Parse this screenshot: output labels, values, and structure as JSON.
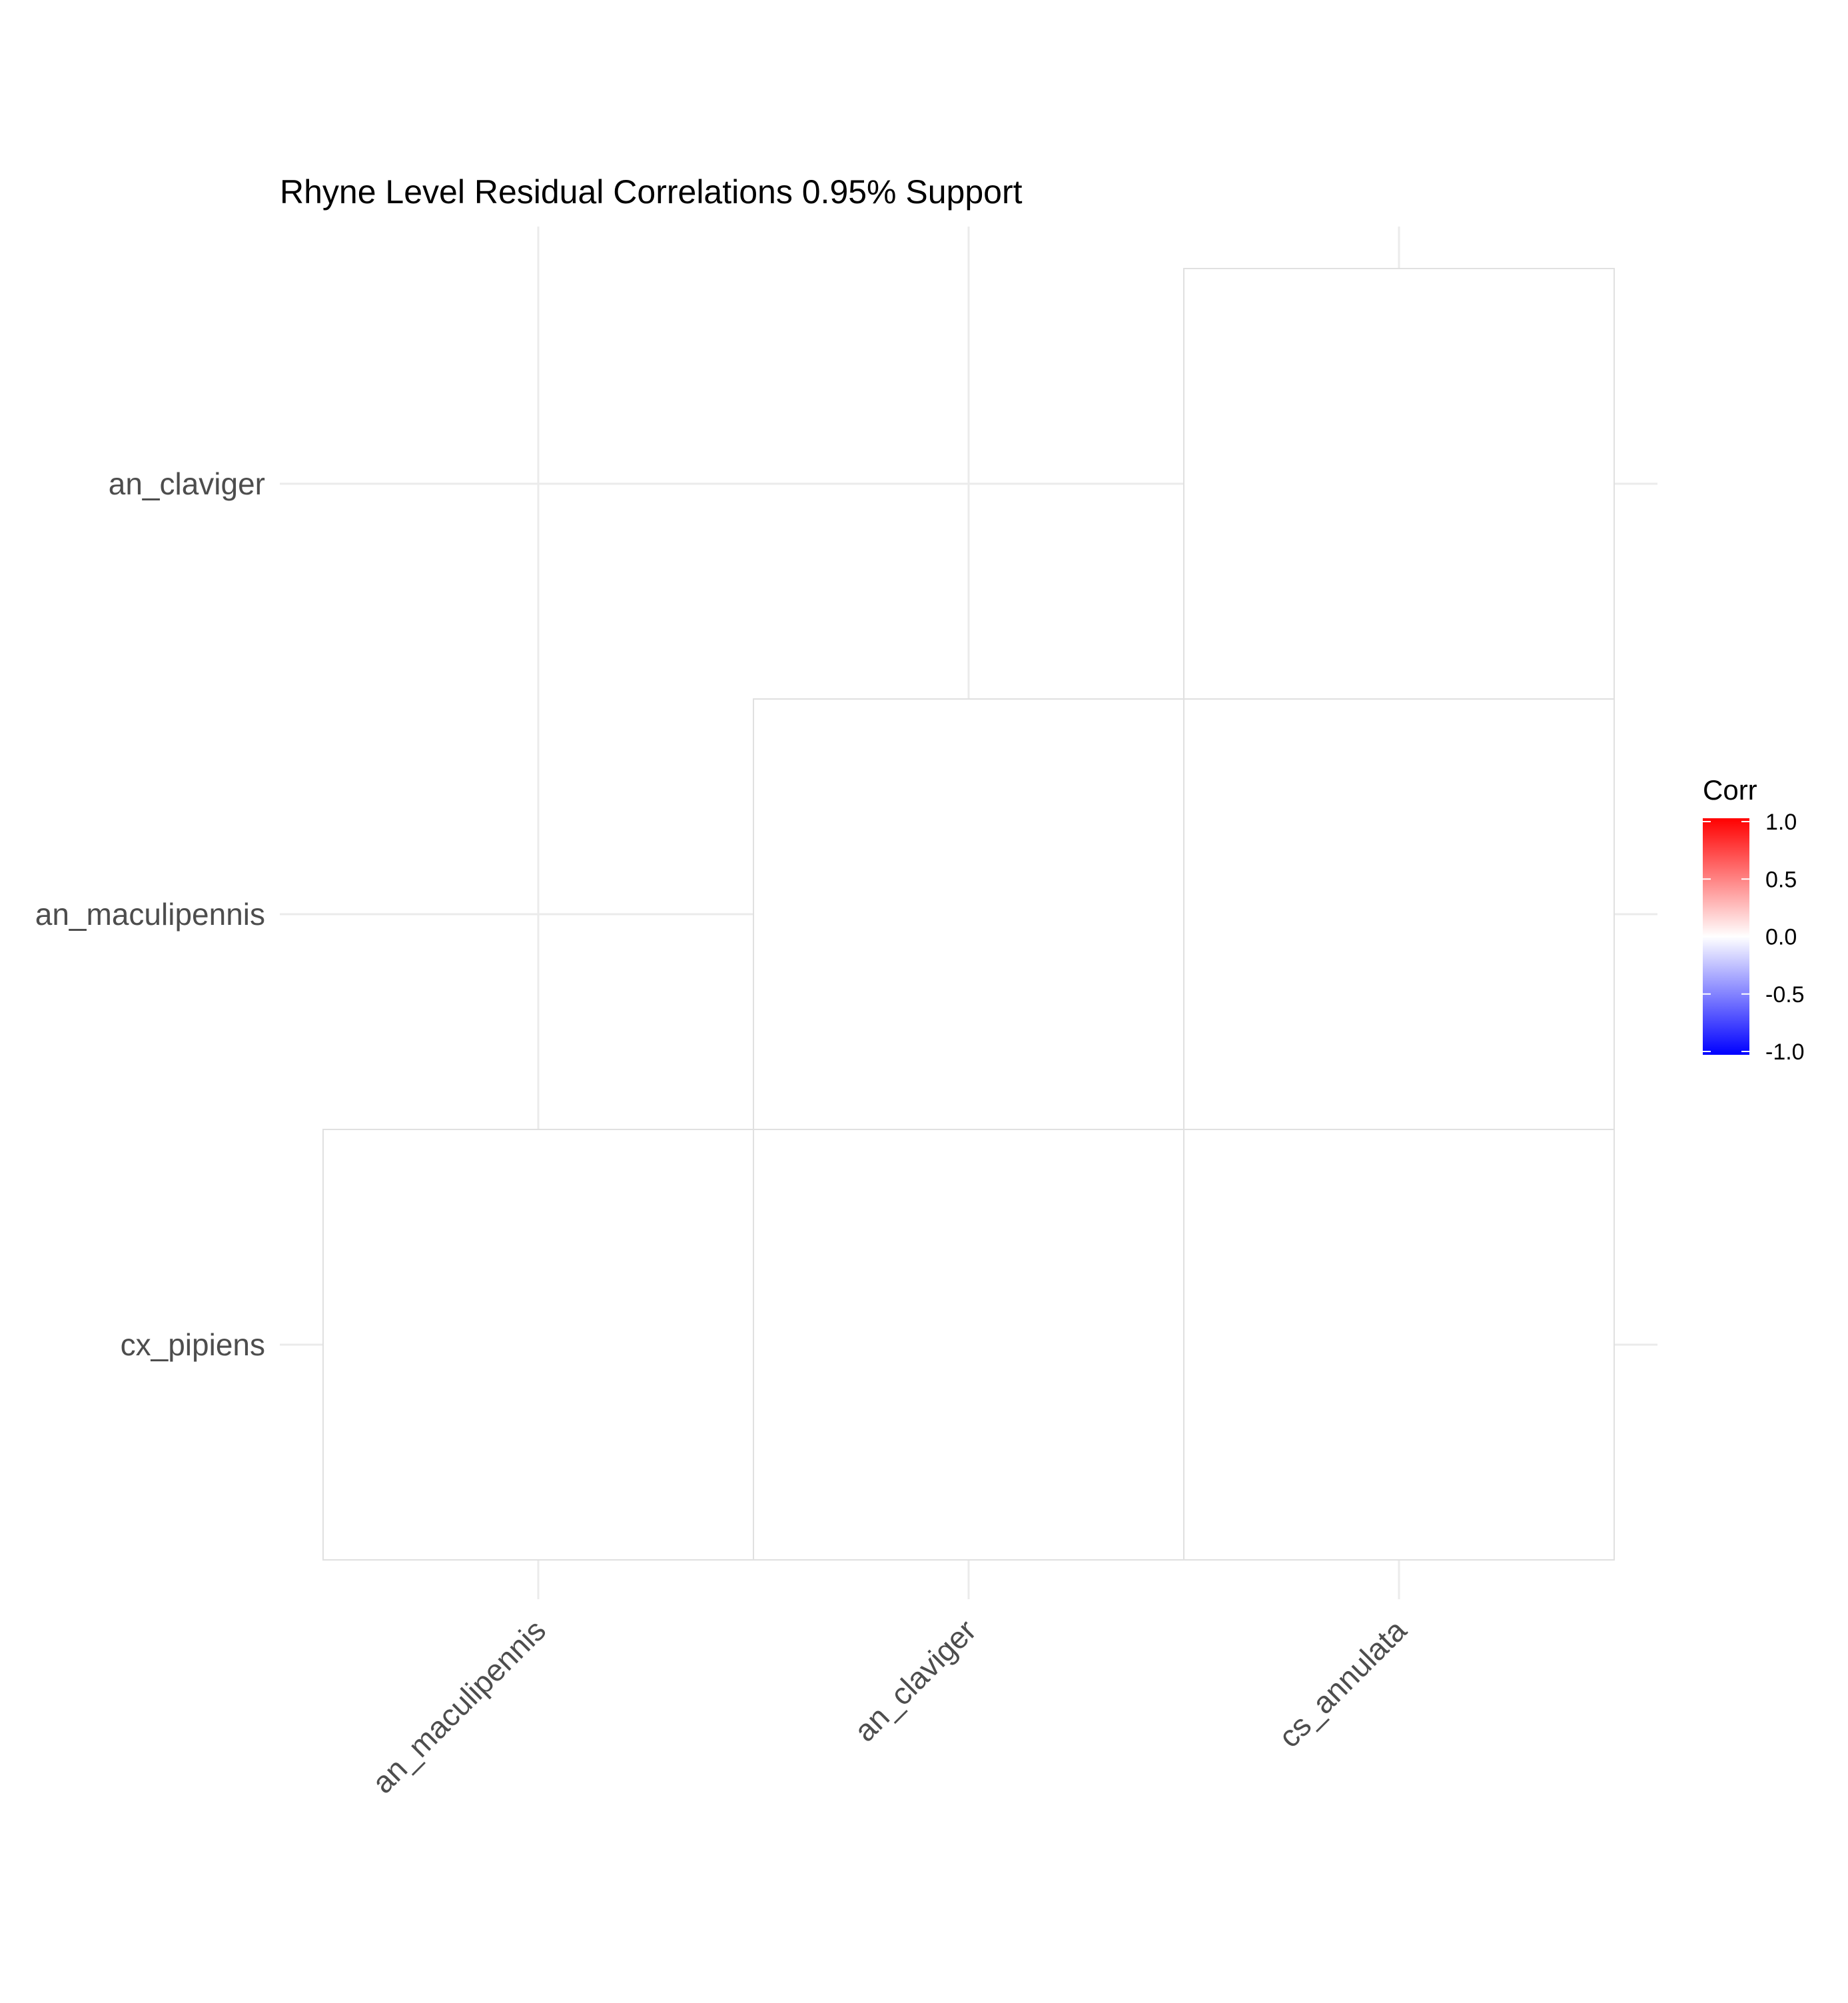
{
  "chart_data": {
    "type": "heatmap",
    "title": "Rhyne Level Residual Correlations 0.95% Support",
    "x_categories": [
      "an_maculipennis",
      "an_claviger",
      "cs_annulata"
    ],
    "y_categories": [
      "an_claviger",
      "an_maculipennis",
      "cx_pipiens"
    ],
    "cells": [
      {
        "x": "cs_annulata",
        "y": "an_claviger",
        "value": 0
      },
      {
        "x": "an_claviger",
        "y": "an_maculipennis",
        "value": 0
      },
      {
        "x": "cs_annulata",
        "y": "an_maculipennis",
        "value": 0
      },
      {
        "x": "an_maculipennis",
        "y": "cx_pipiens",
        "value": 0
      },
      {
        "x": "an_claviger",
        "y": "cx_pipiens",
        "value": 0
      },
      {
        "x": "cs_annulata",
        "y": "cx_pipiens",
        "value": 0
      }
    ],
    "legend": {
      "title": "Corr",
      "position": "right",
      "range": [
        -1,
        1
      ],
      "ticks": [
        "1.0",
        "0.5",
        "0.0",
        "-0.5",
        "-1.0"
      ],
      "colors": {
        "low": "#0000ff",
        "mid": "#ffffff",
        "high": "#ff0000"
      }
    },
    "grid": true
  }
}
